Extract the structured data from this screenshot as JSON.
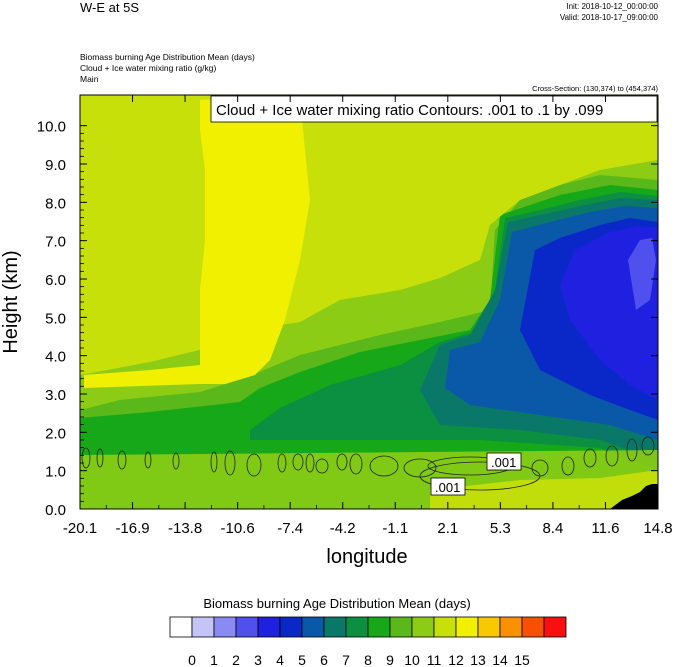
{
  "header": {
    "title": "W-E at 5S",
    "init": "Init: 2018-10-12_00:00:00",
    "valid": "Valid: 2018-10-17_09:00:00",
    "field1": "Biomass burning Age Distribution Mean    (days)",
    "field2": "Cloud + Ice water mixing ratio    (g/kg)",
    "field3": "Main",
    "cross_section": "Cross-Section: (130,374) to (454,374)"
  },
  "chart_data": {
    "type": "heatmap",
    "xlabel": "longitude",
    "ylabel": "Height (km)",
    "x_ticks": [
      "-20.1",
      "-16.9",
      "-13.8",
      "-10.6",
      "-7.4",
      "-4.2",
      "-1.1",
      "2.1",
      "5.3",
      "8.4",
      "11.6",
      "14.8"
    ],
    "y_ticks": [
      "0.0",
      "1.0",
      "2.0",
      "3.0",
      "4.0",
      "5.0",
      "6.0",
      "7.0",
      "8.0",
      "9.0",
      "10.0"
    ],
    "xlim": [
      -20.1,
      14.8
    ],
    "ylim": [
      0,
      10.8
    ],
    "contour_title": "Cloud + Ice water mixing ratio Contours: .001 to .1 by .099",
    "contour_labels": [
      ".001",
      ".001"
    ],
    "colorbar": {
      "title": "Biomass burning Age Distribution Mean  (days)",
      "labels": [
        "0",
        "1",
        "2",
        "3",
        "4",
        "5",
        "6",
        "7",
        "8",
        "9",
        "10",
        "11",
        "12",
        "13",
        "14",
        "15"
      ],
      "colors": [
        "#ffffff",
        "#c4c4f7",
        "#8a8af5",
        "#5050ef",
        "#2020e0",
        "#0a28c8",
        "#0a58a8",
        "#0a7868",
        "#0a9040",
        "#16a818",
        "#5ab81a",
        "#8ccc14",
        "#c8e00a",
        "#f0f000",
        "#f8c800",
        "#f89000",
        "#f85000",
        "#f81010"
      ]
    }
  }
}
